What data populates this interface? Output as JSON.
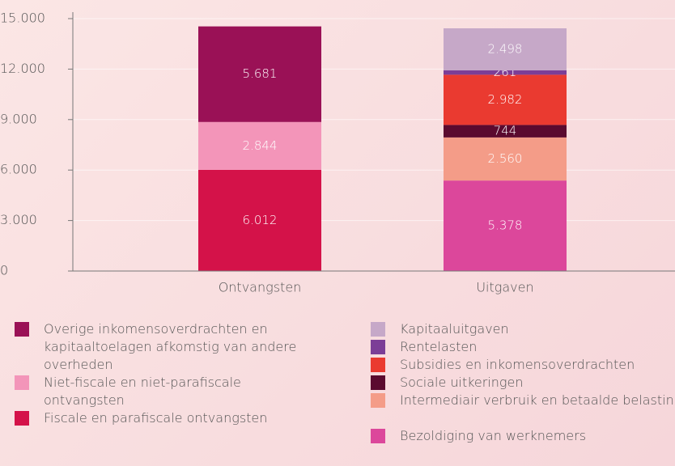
{
  "chart_data": {
    "type": "stacked_bar",
    "categories": [
      "Ontvangsten",
      "Uitgaven"
    ],
    "ylim": [
      0,
      15000
    ],
    "yticks": [
      0,
      {
        "value": 3000,
        "label": "3.000"
      },
      {
        "value": 6000,
        "label": "6.000"
      },
      {
        "value": 9000,
        "label": "9.000"
      },
      {
        "value": 12000,
        "label": "12.000"
      },
      {
        "value": 15000,
        "label": "15.000"
      }
    ],
    "grid": true,
    "series": [
      {
        "name": "Fiscale en parafiscale ontvangsten",
        "color": "#d41249",
        "values": [
          6012,
          null
        ],
        "value_labels": [
          "6.012",
          null
        ]
      },
      {
        "name": "Niet-fiscale en niet-parafiscale ontvangsten",
        "color": "#f395b9",
        "values": [
          2844,
          null
        ],
        "value_labels": [
          "2.844",
          null
        ]
      },
      {
        "name": "Overige inkomensoverdrachten en kapitaaltoelagen afkomstig van andere overheden",
        "color": "#9a1156",
        "values": [
          5681,
          null
        ],
        "value_labels": [
          "5.681",
          null
        ]
      },
      {
        "name": "Bezoldiging van werknemers",
        "color": "#dc479b",
        "values": [
          null,
          5378
        ],
        "value_labels": [
          null,
          "5.378"
        ]
      },
      {
        "name": "Intermediair verbruik en betaalde belastingen",
        "color": "#f49c88",
        "values": [
          null,
          2560
        ],
        "value_labels": [
          null,
          "2.560"
        ]
      },
      {
        "name": "Sociale uitkeringen",
        "color": "#5b0a2f",
        "values": [
          null,
          744
        ],
        "value_labels": [
          null,
          "744"
        ]
      },
      {
        "name": "Subsidies en inkomensoverdrachten",
        "color": "#ea3a30",
        "values": [
          null,
          2982
        ],
        "value_labels": [
          null,
          "2.982"
        ]
      },
      {
        "name": "Rentelasten",
        "color": "#7c3e97",
        "values": [
          null,
          261
        ],
        "value_labels": [
          null,
          "261"
        ]
      },
      {
        "name": "Kapitaaluitgaven",
        "color": "#c6a8c8",
        "values": [
          null,
          2498
        ],
        "value_labels": [
          null,
          "2.498"
        ]
      }
    ]
  }
}
